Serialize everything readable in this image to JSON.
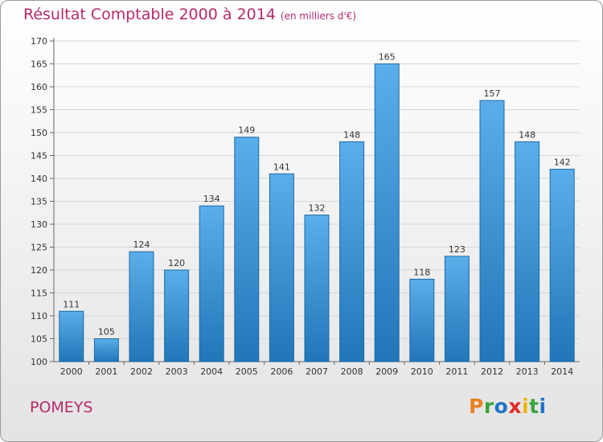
{
  "title": "Résultat Comptable 2000 à 2014",
  "unit_note": "(en milliers d'€)",
  "city": "POMEYS",
  "logo": {
    "letters": [
      "P",
      "r",
      "o",
      "x",
      "i",
      "t",
      "i"
    ],
    "colors": [
      "#e8821e",
      "#3aa33b",
      "#1f73c8",
      "#e32b2b",
      "#f0b400",
      "#3aa33b",
      "#1f73c8"
    ]
  },
  "colors": {
    "title": "#b62a6d",
    "bar_light": "#5aaeea",
    "bar_dark": "#2176b8"
  },
  "chart_data": {
    "type": "bar",
    "categories": [
      "2000",
      "2001",
      "2002",
      "2003",
      "2004",
      "2005",
      "2006",
      "2007",
      "2008",
      "2009",
      "2010",
      "2011",
      "2012",
      "2013",
      "2014"
    ],
    "values": [
      111,
      105,
      124,
      120,
      134,
      149,
      141,
      132,
      148,
      165,
      118,
      123,
      157,
      148,
      142
    ],
    "yticks": [
      100,
      105,
      110,
      115,
      120,
      125,
      130,
      135,
      140,
      145,
      150,
      155,
      160,
      165,
      170
    ],
    "ylim": [
      100,
      170
    ],
    "grid": true,
    "legend": "none"
  }
}
